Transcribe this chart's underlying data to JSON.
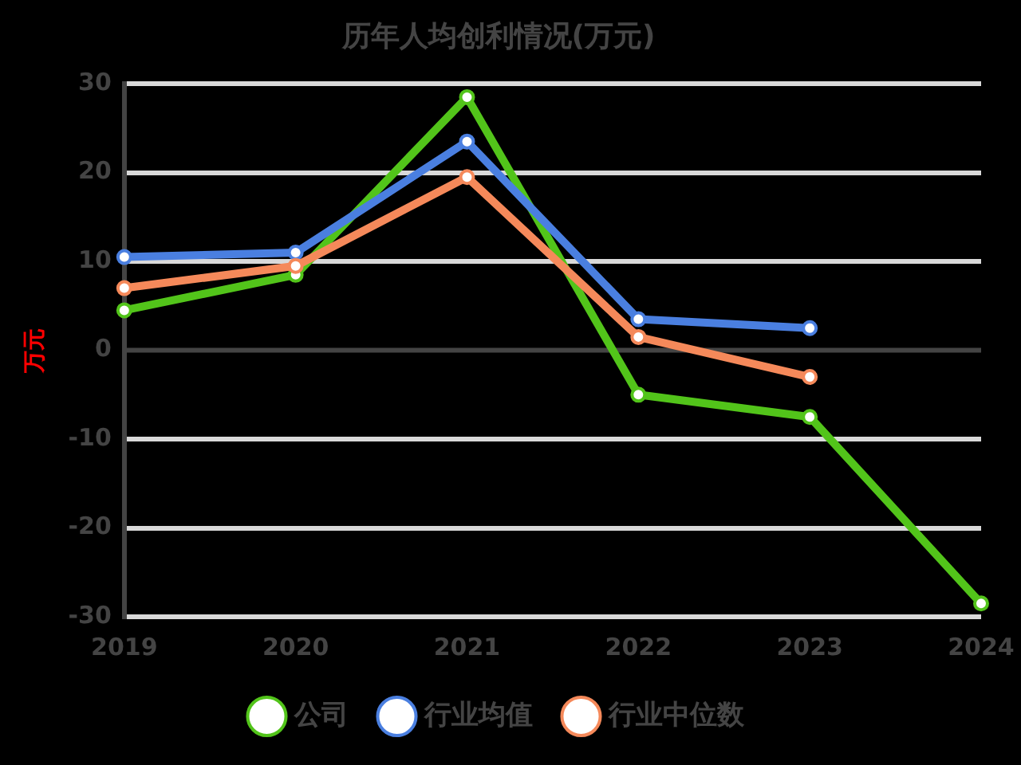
{
  "chart_data": {
    "type": "line",
    "title": "历年人均创利情况(万元)",
    "ylabel": "万元",
    "categories": [
      "2019",
      "2020",
      "2021",
      "2022",
      "2023",
      "2024"
    ],
    "series": [
      {
        "name": "公司",
        "color": "#52c41a",
        "values": [
          4.5,
          8.5,
          28.5,
          -5,
          -7.5,
          -28.5
        ]
      },
      {
        "name": "行业均值",
        "color": "#4a7fe0",
        "values": [
          10.5,
          11,
          23.5,
          3.5,
          2.5,
          null
        ]
      },
      {
        "name": "行业中位数",
        "color": "#f5895a",
        "values": [
          7,
          9.5,
          19.5,
          1.5,
          -3,
          null
        ]
      }
    ],
    "ylim": [
      -30,
      30
    ],
    "yticks": [
      -30,
      -20,
      -10,
      0,
      10,
      20,
      30
    ],
    "grid": "y",
    "legend": "bottom",
    "marker": "circle",
    "line_style": "solid"
  }
}
